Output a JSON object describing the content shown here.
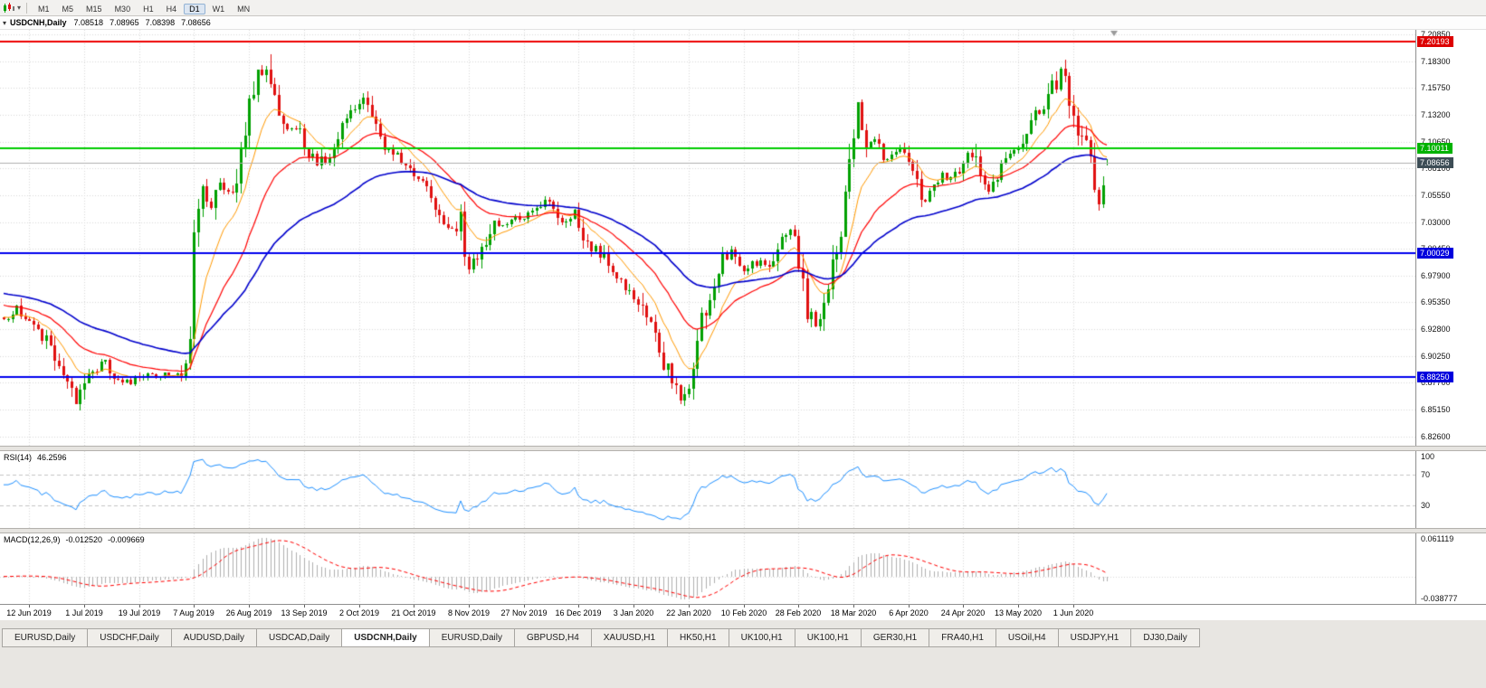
{
  "colors": {
    "up": "#00a000",
    "down": "#e01010",
    "ma_fast": "#ff9900",
    "ma_med": "#ff0000",
    "ma_slow": "#0000cc",
    "grid": "#d9d9d9",
    "rsi_line": "#1e90ff",
    "rsi_level": "#c4c4c4",
    "macd_hist": "#b0b0b0",
    "macd_signal": "#ff0000"
  },
  "toolbar": {
    "timeframes": [
      "M1",
      "M5",
      "M15",
      "M30",
      "H1",
      "H4",
      "D1",
      "W1",
      "MN"
    ],
    "active": "D1"
  },
  "chart": {
    "title": "USDCNH,Daily",
    "ohlc": {
      "open": "7.08518",
      "high": "7.08965",
      "low": "7.08398",
      "close": "7.08656"
    },
    "scale": {
      "min": 6.817,
      "max": 7.213
    },
    "candle_count": 262,
    "date_tick_start": 6,
    "date_tick_step": 13,
    "price_axis_ticks": [
      "7.20850",
      "7.18300",
      "7.15750",
      "7.13200",
      "7.10650",
      "7.08100",
      "7.05550",
      "7.03000",
      "7.00450",
      "6.97900",
      "6.95350",
      "6.92800",
      "6.90250",
      "6.87700",
      "6.85150",
      "6.82600"
    ],
    "hlines": [
      {
        "value": 7.20193,
        "label": "7.20193",
        "color": "#ee0000",
        "label_bg": "#dd0000",
        "width": 2
      },
      {
        "value": 7.10011,
        "label": "7.10011",
        "color": "#00cc00",
        "label_bg": "#00b300",
        "width": 2
      },
      {
        "value": 7.08656,
        "label": "7.08656",
        "color": "#b0b0b0",
        "label_bg": "#3d4d56",
        "width": 1
      },
      {
        "value": 7.00029,
        "label": "7.00029",
        "color": "#0000ee",
        "label_bg": "#0000dd",
        "width": 2
      },
      {
        "value": 6.8825,
        "label": "6.88250",
        "color": "#0000ee",
        "label_bg": "#0000dd",
        "width": 2
      }
    ],
    "dates": [
      "12 Jun 2019",
      "1 Jul 2019",
      "19 Jul 2019",
      "7 Aug 2019",
      "26 Aug 2019",
      "13 Sep 2019",
      "2 Oct 2019",
      "21 Oct 2019",
      "8 Nov 2019",
      "27 Nov 2019",
      "16 Dec 2019",
      "3 Jan 2020",
      "22 Jan 2020",
      "10 Feb 2020",
      "28 Feb 2020",
      "18 Mar 2020",
      "6 Apr 2020",
      "24 Apr 2020",
      "13 May 2020",
      "1 Jun 2020"
    ]
  },
  "rsi": {
    "label": "RSI(14)",
    "value": "46.2596",
    "axis_labels": [
      "100",
      "70",
      "30"
    ],
    "levels": [
      70,
      30
    ],
    "range": [
      0,
      100
    ]
  },
  "macd": {
    "label": "MACD(12,26,9)",
    "main_value": "-0.012520",
    "signal_value": "-0.009669",
    "axis_top": "0.061119",
    "axis_bottom": "-0.038777"
  },
  "tabs": {
    "active_index": 4,
    "items": [
      "EURUSD,Daily",
      "USDCHF,Daily",
      "AUDUSD,Daily",
      "USDCAD,Daily",
      "USDCNH,Daily",
      "EURUSD,Daily",
      "GBPUSD,H4",
      "XAUUSD,H1",
      "HK50,H1",
      "UK100,H1",
      "UK100,H1",
      "GER30,H1",
      "FRA40,H1",
      "USOil,H4",
      "USDJPY,H1",
      "DJ30,Daily"
    ],
    "active_label": "USDCNH,Daily"
  },
  "chart_data": {
    "type": "candlestick",
    "symbol": "USDCNH",
    "timeframe": "Daily",
    "last_candle": {
      "open": 7.08518,
      "high": 7.08965,
      "low": 7.08398,
      "close": 7.08656
    },
    "horizontal_levels": [
      7.20193,
      7.10011,
      7.08656,
      7.00029,
      6.8825
    ],
    "y_range": [
      6.817,
      7.213
    ],
    "price_path": [
      [
        0,
        6.935
      ],
      [
        3,
        6.948
      ],
      [
        6,
        6.932
      ],
      [
        10,
        6.916
      ],
      [
        14,
        6.882
      ],
      [
        17,
        6.858
      ],
      [
        20,
        6.886
      ],
      [
        24,
        6.896
      ],
      [
        28,
        6.876
      ],
      [
        32,
        6.881
      ],
      [
        37,
        6.885
      ],
      [
        42,
        6.888
      ],
      [
        44,
        6.915
      ],
      [
        45,
        7.015
      ],
      [
        47,
        7.062
      ],
      [
        49,
        7.043
      ],
      [
        51,
        7.066
      ],
      [
        54,
        7.06
      ],
      [
        56,
        7.092
      ],
      [
        58,
        7.14
      ],
      [
        60,
        7.168
      ],
      [
        62,
        7.178
      ],
      [
        64,
        7.148
      ],
      [
        67,
        7.117
      ],
      [
        69,
        7.121
      ],
      [
        71,
        7.106
      ],
      [
        74,
        7.082
      ],
      [
        77,
        7.097
      ],
      [
        80,
        7.126
      ],
      [
        83,
        7.137
      ],
      [
        85,
        7.146
      ],
      [
        87,
        7.126
      ],
      [
        89,
        7.106
      ],
      [
        92,
        7.096
      ],
      [
        95,
        7.081
      ],
      [
        97,
        7.071
      ],
      [
        100,
        7.066
      ],
      [
        103,
        7.041
      ],
      [
        106,
        7.021
      ],
      [
        108,
        7.032
      ],
      [
        110,
        6.984
      ],
      [
        113,
        7.001
      ],
      [
        116,
        7.026
      ],
      [
        119,
        7.031
      ],
      [
        123,
        7.036
      ],
      [
        126,
        7.041
      ],
      [
        129,
        7.051
      ],
      [
        132,
        7.031
      ],
      [
        135,
        7.041
      ],
      [
        137,
        7.021
      ],
      [
        139,
        7.006
      ],
      [
        142,
        6.996
      ],
      [
        145,
        6.976
      ],
      [
        148,
        6.966
      ],
      [
        150,
        6.956
      ],
      [
        152,
        6.936
      ],
      [
        154,
        6.921
      ],
      [
        156,
        6.896
      ],
      [
        158,
        6.881
      ],
      [
        160,
        6.861
      ],
      [
        162,
        6.876
      ],
      [
        164,
        6.921
      ],
      [
        166,
        6.946
      ],
      [
        168,
        6.976
      ],
      [
        170,
        6.996
      ],
      [
        172,
        7.001
      ],
      [
        175,
        6.986
      ],
      [
        178,
        6.991
      ],
      [
        181,
        6.986
      ],
      [
        184,
        7.011
      ],
      [
        186,
        7.021
      ],
      [
        188,
        6.996
      ],
      [
        190,
        6.946
      ],
      [
        192,
        6.931
      ],
      [
        194,
        6.956
      ],
      [
        196,
        6.986
      ],
      [
        198,
        7.026
      ],
      [
        200,
        7.091
      ],
      [
        201,
        7.116
      ],
      [
        202,
        7.141
      ],
      [
        204,
        7.096
      ],
      [
        206,
        7.106
      ],
      [
        208,
        7.091
      ],
      [
        210,
        7.096
      ],
      [
        212,
        7.101
      ],
      [
        214,
        7.091
      ],
      [
        216,
        7.066
      ],
      [
        218,
        7.051
      ],
      [
        220,
        7.066
      ],
      [
        222,
        7.076
      ],
      [
        224,
        7.071
      ],
      [
        227,
        7.081
      ],
      [
        229,
        7.096
      ],
      [
        231,
        7.066
      ],
      [
        233,
        7.061
      ],
      [
        235,
        7.076
      ],
      [
        237,
        7.096
      ],
      [
        240,
        7.101
      ],
      [
        242,
        7.116
      ],
      [
        244,
        7.131
      ],
      [
        246,
        7.136
      ],
      [
        248,
        7.156
      ],
      [
        250,
        7.176
      ],
      [
        252,
        7.151
      ],
      [
        253,
        7.136
      ],
      [
        255,
        7.111
      ],
      [
        257,
        7.086
      ],
      [
        258,
        7.066
      ],
      [
        259,
        7.046
      ],
      [
        260,
        7.076
      ],
      [
        261,
        7.0866
      ]
    ],
    "moving_averages": [
      {
        "name": "EMA10",
        "period": 10,
        "color_key": "ma_fast"
      },
      {
        "name": "EMA25",
        "period": 25,
        "color_key": "ma_med"
      },
      {
        "name": "EMA55",
        "period": 55,
        "color_key": "ma_slow"
      }
    ],
    "indicators": [
      {
        "name": "RSI",
        "period": 14,
        "last": 46.2596
      },
      {
        "name": "MACD",
        "fast": 12,
        "slow": 26,
        "signal": 9,
        "last_main": -0.01252,
        "last_signal": -0.009669
      }
    ]
  }
}
